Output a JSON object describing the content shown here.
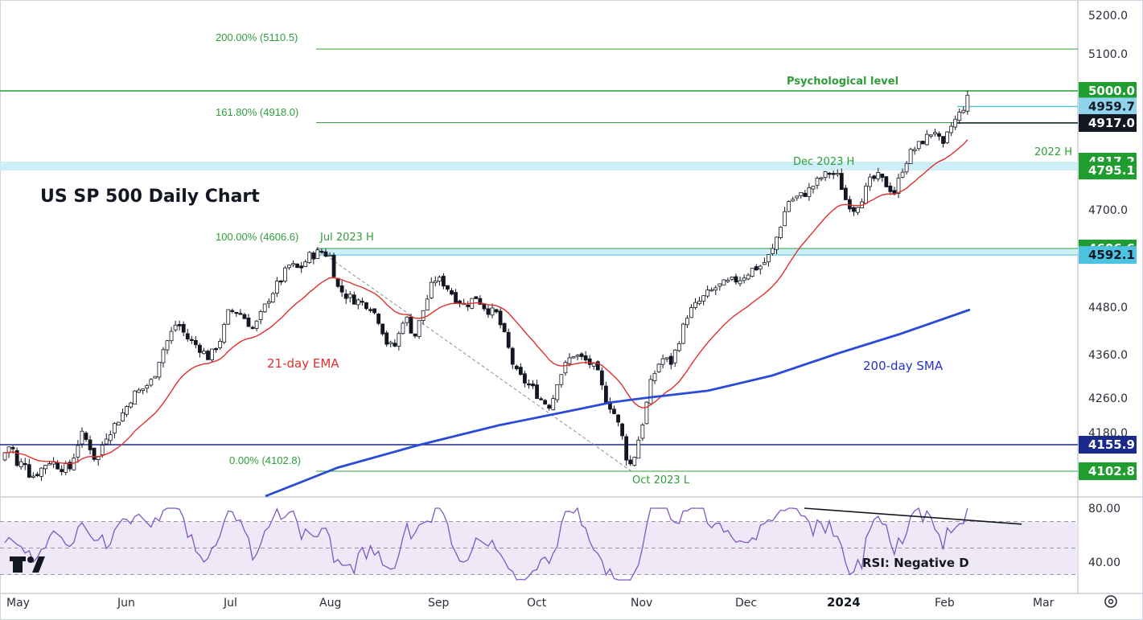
{
  "chart_data": [
    {
      "type": "candlestick",
      "title": "US SP 500 Daily Chart",
      "price_ticks": [
        "5200.0",
        "5100.0",
        "4700.0",
        "4480.0",
        "4360.0",
        "4260.0",
        "4180.0"
      ],
      "time_ticks": [
        {
          "label": "May",
          "x": "2023-05-01"
        },
        {
          "label": "Jun",
          "x": "2023-06-01"
        },
        {
          "label": "Jul",
          "x": "2023-07-01"
        },
        {
          "label": "Aug",
          "x": "2023-08-01"
        },
        {
          "label": "Sep",
          "x": "2023-09-01"
        },
        {
          "label": "Oct",
          "x": "2023-10-01"
        },
        {
          "label": "Nov",
          "x": "2023-11-01"
        },
        {
          "label": "Dec",
          "x": "2023-12-01"
        },
        {
          "label": "2024",
          "x": "2024-01-01"
        },
        {
          "label": "Feb",
          "x": "2024-02-01"
        },
        {
          "label": "Mar",
          "x": "2024-03-01"
        }
      ],
      "price_badges": [
        {
          "label": "5000.0",
          "value": 5000.0,
          "bg": "#1f9d2e",
          "fg": "#ffffff"
        },
        {
          "label": "4959.7",
          "value": 4959.7,
          "bg": "#8fd4ec",
          "fg": "#131722"
        },
        {
          "label": "4917.0",
          "value": 4917.0,
          "bg": "#131722",
          "fg": "#ffffff"
        },
        {
          "label": "4817.2",
          "value": 4817.2,
          "bg": "#1f9d2e",
          "fg": "#ffffff"
        },
        {
          "label": "4795.1",
          "value": 4795.1,
          "bg": "#1f9d2e",
          "fg": "#ffffff"
        },
        {
          "label": "4606.6",
          "value": 4606.6,
          "bg": "#1f9d2e",
          "fg": "#ffffff"
        },
        {
          "label": "4592.1",
          "value": 4592.1,
          "bg": "#4cc3e0",
          "fg": "#131722"
        },
        {
          "label": "4155.9",
          "value": 4155.9,
          "bg": "#1a2a8c",
          "fg": "#ffffff"
        },
        {
          "label": "4102.8",
          "value": 4102.8,
          "bg": "#1f9d2e",
          "fg": "#ffffff"
        }
      ],
      "fibonacci": [
        {
          "label": "200.00% (5110.5)",
          "value": 5110.5
        },
        {
          "label": "161.80% (4918.0)",
          "value": 4918.0
        },
        {
          "label": "100.00% (4606.6)",
          "value": 4606.6
        },
        {
          "label": "0.00% (4102.8)",
          "value": 4102.8
        }
      ],
      "annotations": {
        "psych": "Psychological level",
        "h2022": "2022 H",
        "dec2023": "Dec 2023 H",
        "jul2023": "Jul 2023 H",
        "oct2023": "Oct 2023 L",
        "ema": "21-day EMA",
        "sma": "200-day SMA"
      },
      "colors": {
        "up": "#ffffff",
        "down": "#131722",
        "ema": "#e0302a",
        "sma": "#2a4bd7",
        "fib": "#2e9e3a",
        "zone": "#c5ecf7"
      }
    },
    {
      "type": "line",
      "name": "RSI",
      "ticks": [
        "80.00",
        "40.00"
      ],
      "label": "RSI: Negative D",
      "colors": {
        "line": "#7e57c2",
        "band": "#ede7f6"
      }
    }
  ],
  "logo": "TV"
}
